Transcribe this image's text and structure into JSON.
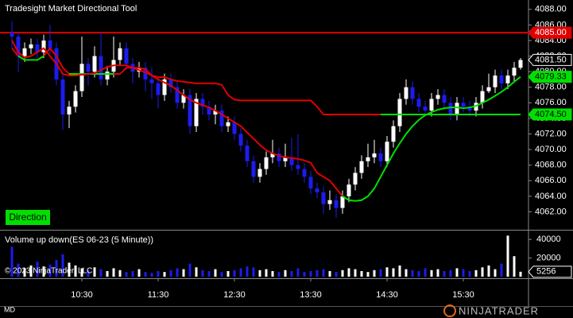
{
  "chart_data": [
    {
      "type": "candlestick",
      "title": "Tradesight Market Directional Tool",
      "categories": [
        null,
        null,
        null,
        null,
        null,
        null,
        null,
        null,
        null,
        null,
        null,
        "10:30",
        null,
        null,
        null,
        null,
        null,
        null,
        null,
        null,
        null,
        null,
        null,
        "11:30",
        null,
        null,
        null,
        null,
        null,
        null,
        null,
        null,
        null,
        null,
        null,
        "12:30",
        null,
        null,
        null,
        null,
        null,
        null,
        null,
        null,
        null,
        null,
        null,
        "13:30",
        null,
        null,
        null,
        null,
        null,
        null,
        null,
        null,
        null,
        null,
        null,
        "14:30",
        null,
        null,
        null,
        null,
        null,
        null,
        null,
        null,
        null,
        null,
        null,
        "15:30",
        null,
        null,
        null,
        null,
        null,
        null,
        null,
        null,
        null
      ],
      "open": [
        4085,
        4084.5,
        4082,
        4083,
        4083.5,
        4082.5,
        4084,
        4083,
        4079,
        4074.5,
        4075.5,
        4077.5,
        4081,
        4080,
        4082,
        4079,
        4080,
        4081.5,
        4083,
        4081,
        4080,
        4080.5,
        4079,
        4078.5,
        4077,
        4079,
        4078,
        4076,
        4077,
        4073,
        4076.5,
        4075.5,
        4074.5,
        4075,
        4073,
        4073.5,
        4072,
        4070.5,
        4068.5,
        4066.5,
        4067.5,
        4069,
        4069.5,
        4068.5,
        4069,
        4068,
        4067.5,
        4066.5,
        4065,
        4064.5,
        4063,
        4063.5,
        4062.5,
        4064,
        4065.5,
        4067,
        4068.5,
        4069,
        4069.5,
        4068.5,
        4071,
        4073,
        4076.5,
        4078,
        4076.5,
        4075.5,
        4075,
        4076.5,
        4077,
        4076,
        4074.5,
        4076,
        4075.5,
        4075,
        4076,
        4077.5,
        4078,
        4079.5,
        4078.5,
        4079.5,
        4080.5
      ],
      "high": [
        4086.5,
        4085,
        4083.75,
        4084.25,
        4084.25,
        4084.75,
        4086,
        4083.75,
        4079.75,
        4076.25,
        4078.25,
        4084.5,
        4081.75,
        4083.25,
        4085,
        4080.75,
        4084.5,
        4083.75,
        4083.75,
        4081.75,
        4081.25,
        4081.25,
        4080.5,
        4079.25,
        4079.75,
        4079.75,
        4078.75,
        4077.75,
        4077.75,
        4077.25,
        4077.25,
        4076.25,
        4075.75,
        4075.75,
        4074.25,
        4074.25,
        4072.75,
        4071.25,
        4069.25,
        4068.25,
        4069.75,
        4071.25,
        4070.25,
        4070.75,
        4071.5,
        4072,
        4068.25,
        4067.25,
        4065.75,
        4065.25,
        4064.75,
        4064.25,
        4064.75,
        4066.25,
        4067.75,
        4069.25,
        4070.75,
        4071.25,
        4070.25,
        4071.75,
        4073.75,
        4077.25,
        4079,
        4078.75,
        4077.25,
        4076.25,
        4077.25,
        4077.75,
        4077.75,
        4076.75,
        4076.75,
        4076.75,
        4076.25,
        4076.75,
        4078.25,
        4079.75,
        4080.25,
        4080.25,
        4080.25,
        4081.25,
        4081.75
      ],
      "low": [
        4083,
        4080,
        4081.25,
        4082.25,
        4081.75,
        4081.75,
        4082.25,
        4078.25,
        4072.5,
        4072.75,
        4074.75,
        4076.75,
        4078.25,
        4079.25,
        4078.25,
        4078.25,
        4079.25,
        4080.75,
        4080.25,
        4078.5,
        4079.25,
        4077.5,
        4076.5,
        4075.25,
        4076.25,
        4077.25,
        4075.25,
        4075.25,
        4072,
        4072.25,
        4074.5,
        4073.75,
        4073.25,
        4072.25,
        4072.25,
        4071.25,
        4069.75,
        4067.75,
        4065.75,
        4065.75,
        4066.75,
        4068.25,
        4067.75,
        4067.75,
        4067.25,
        4066.75,
        4065.75,
        4064.25,
        4063.75,
        4061.75,
        4062.25,
        4061.25,
        4061.75,
        4063.25,
        4064.75,
        4066.25,
        4067.75,
        4068.25,
        4067.75,
        4067.75,
        4070.25,
        4072.25,
        4075.75,
        4075.75,
        4074.75,
        4074.25,
        4074.25,
        4075.75,
        4075.25,
        4073.75,
        4073.75,
        4074.75,
        4074.25,
        4074.25,
        4075.25,
        4077.25,
        4077.25,
        4077.75,
        4077.75,
        4078.75,
        4080.25
      ],
      "close": [
        4084.5,
        4082,
        4083,
        4083.5,
        4082.5,
        4084,
        4083,
        4079,
        4074.5,
        4075.5,
        4077.5,
        4081,
        4080,
        4082,
        4079,
        4080,
        4081.5,
        4083,
        4081,
        4080,
        4080.5,
        4079,
        4078.5,
        4077,
        4079,
        4078,
        4076,
        4077,
        4073,
        4076.5,
        4075.5,
        4074.5,
        4075,
        4073,
        4073.5,
        4072,
        4070.5,
        4068.5,
        4066.5,
        4067.5,
        4069,
        4069.5,
        4068.5,
        4069,
        4068,
        4067.5,
        4066.5,
        4065,
        4064.5,
        4063,
        4063.5,
        4062.5,
        4064,
        4065.5,
        4067,
        4068.5,
        4069,
        4069.5,
        4068.5,
        4071,
        4073,
        4076.5,
        4078,
        4076.5,
        4075.5,
        4075,
        4076.5,
        4077,
        4076,
        4074.5,
        4076,
        4075.5,
        4075,
        4076,
        4077.5,
        4078,
        4079.5,
        4078.5,
        4079.5,
        4080.5,
        4081.5
      ],
      "up_color": "#ffffff",
      "down_color": "#1c1cf0",
      "series": [
        {
          "color": "#e00000",
          "values": [
            4083,
            4082,
            null,
            null,
            null,
            4082,
            4083,
            4082,
            4080.5,
            4079.7,
            null,
            null,
            null,
            null,
            null,
            null,
            4079.7,
            4079.7,
            4080.5,
            4080.5,
            4080.5,
            4080.3,
            4079.5,
            4079.3,
            4079.3,
            4079,
            4078.8,
            4078.7,
            4078.6,
            4078.5,
            4078.5,
            4078.5,
            4078.5,
            4078.3,
            4077,
            4076.4,
            4076.3,
            4076.3,
            4076.3,
            4076.3,
            4076.3,
            4076.3,
            4076.3,
            4076.3,
            4076.3,
            4076.3,
            4076.3,
            4076.3,
            4075.5,
            4074.5,
            4074.5,
            4074.5,
            4074.5,
            4074.5,
            4074.5,
            4074.5,
            4074.5,
            4074.5,
            4074.5,
            null,
            null,
            null,
            null,
            null,
            null,
            null,
            null,
            null,
            null,
            null,
            null,
            null,
            null,
            null,
            null,
            null,
            null,
            null,
            null,
            null,
            null
          ]
        },
        {
          "color": "#00e000",
          "values": [
            null,
            4082,
            4081.5,
            4081.5,
            4081.5,
            4082,
            null,
            null,
            null,
            4079.7,
            4079.7,
            4079.7,
            4079.7,
            4079.7,
            4079.7,
            4079.7,
            4079.7,
            null,
            null,
            null,
            null,
            null,
            null,
            null,
            null,
            null,
            null,
            null,
            null,
            null,
            null,
            null,
            null,
            null,
            null,
            null,
            null,
            null,
            null,
            null,
            null,
            null,
            null,
            null,
            null,
            null,
            null,
            null,
            null,
            null,
            null,
            null,
            null,
            null,
            null,
            null,
            null,
            null,
            4074.5,
            4074.5,
            4074.5,
            4074.5,
            4074.5,
            4074.5,
            4074.5,
            4074.5,
            4074.5,
            4074.5,
            4074.5,
            4074.5,
            4074.5,
            4074.5,
            4074.5,
            4074.5,
            4074.5,
            4074.5,
            4074.5,
            4074.5,
            4074.5,
            4074.5,
            4074.5
          ]
        },
        {
          "color": "#e00000",
          "values": [
            4084,
            4082.5,
            4081.8,
            4082,
            4082.5,
            4083,
            4082,
            4081,
            4079.7,
            4079.5,
            4079.5,
            4079.6,
            4079.7,
            4079.8,
            4080.2,
            4080.6,
            4080.8,
            4080.8,
            4080.8,
            4080.5,
            4080.2,
            4079.9,
            4079.5,
            4079,
            4078.6,
            4078.2,
            4077.6,
            4077,
            4076.4,
            4076,
            4075.7,
            4075.4,
            4075,
            4074.5,
            4074,
            4073.5,
            4073,
            4072.2,
            4071.4,
            4070.6,
            4069.9,
            4069.5,
            4069.2,
            4069,
            4068.9,
            4068.8,
            4068.6,
            4068.3,
            4067,
            4066.5,
            4066,
            4065,
            4064,
            null,
            null,
            null,
            null,
            null,
            null,
            null,
            null,
            null,
            null,
            null,
            null,
            null,
            null,
            null,
            null,
            null,
            null,
            null,
            null,
            null,
            null,
            null,
            null,
            null,
            null,
            null,
            null
          ]
        },
        {
          "color": "#00e000",
          "values": [
            null,
            null,
            null,
            null,
            null,
            null,
            null,
            null,
            null,
            null,
            null,
            null,
            null,
            null,
            null,
            null,
            null,
            null,
            null,
            null,
            null,
            null,
            null,
            null,
            null,
            null,
            null,
            null,
            null,
            null,
            null,
            null,
            null,
            null,
            null,
            null,
            null,
            null,
            null,
            null,
            null,
            null,
            null,
            null,
            null,
            null,
            null,
            null,
            null,
            null,
            null,
            null,
            4064,
            4063.5,
            4063.4,
            4063.5,
            4064,
            4065,
            4066.5,
            4068,
            4069.5,
            4070.8,
            4072,
            4073,
            4073.8,
            4074.4,
            4074.8,
            4075.1,
            4075.3,
            4075.4,
            4075.4,
            4075.3,
            4075.4,
            4075.6,
            4076,
            4076.4,
            4076.9,
            4077.4,
            4078,
            4078.7,
            4079.33
          ]
        }
      ],
      "hline": {
        "value": 4085,
        "color": "#e00000"
      },
      "price_tags": [
        {
          "value": 4085,
          "label": "4085.00",
          "color": "#e00000"
        },
        {
          "value": 4081.5,
          "label": "4081.50",
          "color": "#000000"
        },
        {
          "value": 4079.33,
          "label": "4079.33",
          "color": "#00e000"
        },
        {
          "value": 4074.5,
          "label": "4074.50",
          "color": "#00e000"
        }
      ],
      "ylim": [
        4059.8,
        4089.2
      ],
      "yticks": [
        {
          "value": 4062,
          "label": "4062.00"
        },
        {
          "value": 4064,
          "label": "4064.00"
        },
        {
          "value": 4066,
          "label": "4066.00"
        },
        {
          "value": 4068,
          "label": "4068.00"
        },
        {
          "value": 4070,
          "label": "4070.00"
        },
        {
          "value": 4072,
          "label": "4072.00"
        },
        {
          "value": 4074,
          "label": "4074.00"
        },
        {
          "value": 4076,
          "label": "4076.00"
        },
        {
          "value": 4078,
          "label": "4078.00"
        },
        {
          "value": 4080,
          "label": "4080.00"
        },
        {
          "value": 4082,
          "label": "4082.00"
        },
        {
          "value": 4084,
          "label": "4084.00"
        },
        {
          "value": 4086,
          "label": "4086.00"
        },
        {
          "value": 4088,
          "label": "4088.00"
        }
      ]
    },
    {
      "type": "bar",
      "title": "Volume up down(ES 06-23 (5 Minute))",
      "values": [
        32000,
        14000,
        9000,
        12000,
        16000,
        11000,
        13000,
        18000,
        24000,
        15000,
        12000,
        9000,
        7000,
        10000,
        8000,
        6000,
        9000,
        7000,
        5000,
        6000,
        8000,
        5000,
        4000,
        6000,
        5000,
        7000,
        9000,
        8000,
        14000,
        10000,
        7000,
        6000,
        8000,
        5000,
        6000,
        7000,
        9000,
        11000,
        10000,
        7000,
        8000,
        6000,
        5000,
        7000,
        6000,
        9000,
        5000,
        6000,
        7000,
        8000,
        6000,
        5000,
        7000,
        9000,
        8000,
        6000,
        5000,
        7000,
        8000,
        10000,
        9000,
        12000,
        8000,
        7000,
        6000,
        9000,
        7000,
        8000,
        6000,
        7000,
        9000,
        8000,
        6000,
        7000,
        10000,
        12000,
        8000,
        14000,
        44000,
        22000,
        5256
      ],
      "last_value_tag": 5256,
      "ylim": [
        0,
        49500
      ],
      "yticks": [
        20000,
        40000
      ]
    }
  ],
  "button": "Direction",
  "copyright": "© 2023 NinjaTrader, LLC",
  "footer_label": "MD",
  "logo": "NINJATRADER"
}
